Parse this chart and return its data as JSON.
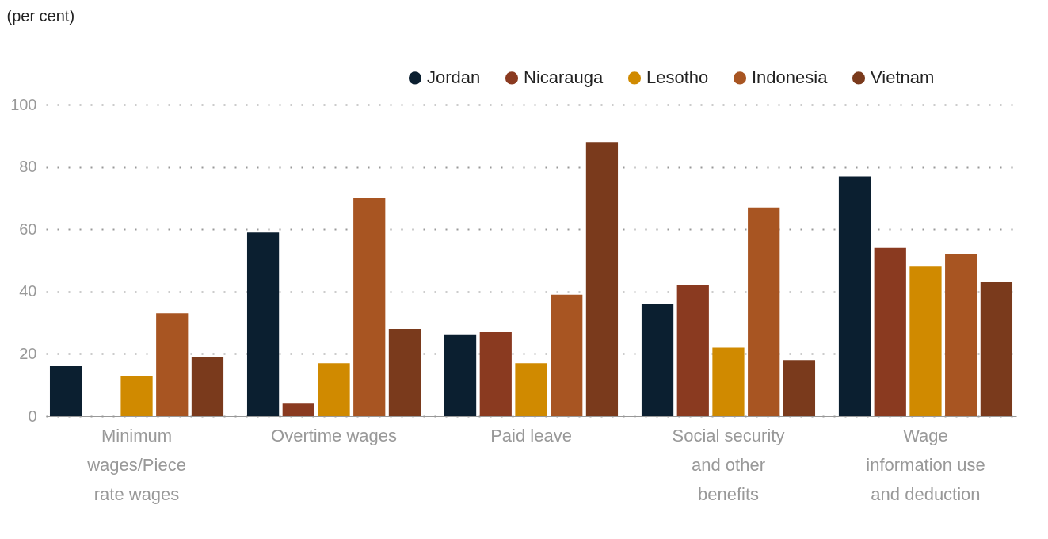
{
  "chart_data": {
    "type": "bar",
    "ylabel": "(per cent)",
    "categories": [
      "Minimum wages/Piece rate wages",
      "Overtime wages",
      "Paid leave",
      "Social security and other benefits",
      "Wage information use and deduction"
    ],
    "series": [
      {
        "name": "Jordan",
        "color": "#0b1f30",
        "values": [
          16,
          59,
          26,
          36,
          77
        ]
      },
      {
        "name": "Nicarauga",
        "color": "#8a3a20",
        "values": [
          null,
          4,
          27,
          42,
          54
        ]
      },
      {
        "name": "Lesotho",
        "color": "#d08a00",
        "values": [
          13,
          17,
          17,
          22,
          48
        ]
      },
      {
        "name": "Indonesia",
        "color": "#a85522",
        "values": [
          33,
          70,
          39,
          67,
          52
        ]
      },
      {
        "name": "Vietnam",
        "color": "#7a3a1c",
        "values": [
          19,
          28,
          88,
          18,
          43
        ]
      }
    ],
    "ylim": [
      0,
      100
    ],
    "yticks": [
      0,
      20,
      40,
      60,
      80,
      100
    ],
    "grid": "y",
    "legend": "top right"
  }
}
